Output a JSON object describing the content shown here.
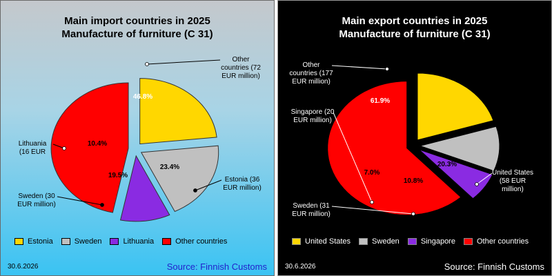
{
  "chart_data": [
    {
      "type": "pie",
      "title": "Main import countries in 2025",
      "subtitle": "Manufacture of furniture (C 31)",
      "date": "30.6.2026",
      "source": "Source: Finnish Customs",
      "slices": [
        {
          "name": "Estonia",
          "value": 23.4,
          "pct_label": "23.4%",
          "callout": [
            "Estonia (36",
            "EUR million)"
          ],
          "color": "#ffd700"
        },
        {
          "name": "Sweden",
          "value": 19.5,
          "pct_label": "19.5%",
          "callout": [
            "Sweden (30",
            "EUR million)"
          ],
          "color": "#c0c0c0"
        },
        {
          "name": "Lithuania",
          "value": 10.4,
          "pct_label": "10.4%",
          "callout": [
            "Lithuania",
            "(16 EUR"
          ],
          "color": "#8a2be2"
        },
        {
          "name": "Other countries",
          "value": 46.8,
          "pct_label": "46.8%",
          "callout": [
            "Other",
            "countries (72",
            "EUR million)"
          ],
          "color": "#ff0000"
        }
      ],
      "legend": [
        "Estonia",
        "Sweden",
        "Lithuania",
        "Other countries"
      ],
      "legend_placement": "bottom"
    },
    {
      "type": "pie",
      "title": "Main export countries in 2025",
      "subtitle": "Manufacture of furniture (C 31)",
      "date": "30.6.2026",
      "source": "Source: Finnish Customs",
      "slices": [
        {
          "name": "United States",
          "value": 20.3,
          "pct_label": "20.3%",
          "callout": [
            "United States",
            "(58 EUR",
            "million)"
          ],
          "color": "#ffd700"
        },
        {
          "name": "Sweden",
          "value": 10.8,
          "pct_label": "10.8%",
          "callout": [
            "Sweden (31",
            "EUR million)"
          ],
          "color": "#c0c0c0"
        },
        {
          "name": "Singapore",
          "value": 7.0,
          "pct_label": "7.0%",
          "callout": [
            "Singapore (20",
            "EUR million)"
          ],
          "color": "#8a2be2"
        },
        {
          "name": "Other countries",
          "value": 61.9,
          "pct_label": "61.9%",
          "callout": [
            "Other",
            "countries (177",
            "EUR million)"
          ],
          "color": "#ff0000"
        }
      ],
      "legend": [
        "United States",
        "Sweden",
        "Singapore",
        "Other countries"
      ],
      "legend_placement": "bottom"
    }
  ]
}
